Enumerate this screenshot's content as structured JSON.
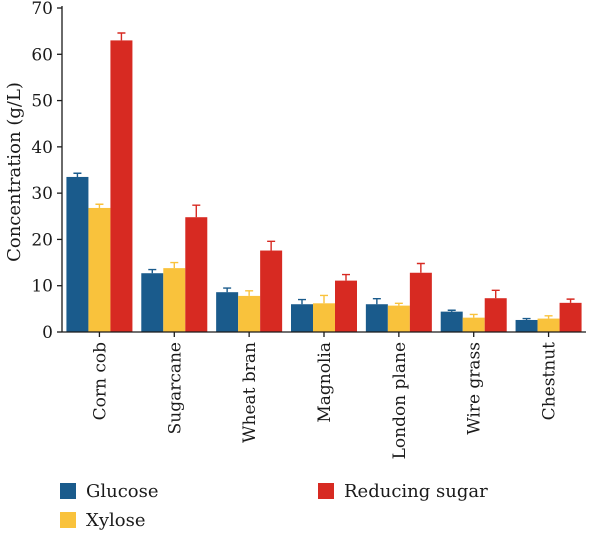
{
  "chart_data": {
    "type": "bar",
    "title": "",
    "xlabel": "",
    "ylabel": "Concentration (g/L)",
    "ylim": [
      0,
      70
    ],
    "yticks": [
      0,
      10,
      20,
      30,
      40,
      50,
      60,
      70
    ],
    "grid": false,
    "legend_position": "bottom",
    "categories": [
      "Corn cob",
      "Sugarcane",
      "Wheat bran",
      "Magnolia",
      "London plane",
      "Wire grass",
      "Chestnut"
    ],
    "series": [
      {
        "name": "Glucose",
        "color": "#1a5b8c",
        "values": [
          33.5,
          12.7,
          8.6,
          6.0,
          6.0,
          4.4,
          2.6
        ],
        "errors": [
          0.8,
          0.8,
          0.9,
          1.0,
          1.2,
          0.3,
          0.3
        ]
      },
      {
        "name": "Xylose",
        "color": "#f9c23c",
        "values": [
          26.8,
          13.8,
          7.8,
          6.2,
          5.7,
          3.1,
          2.9
        ],
        "errors": [
          0.8,
          1.2,
          1.1,
          1.7,
          0.5,
          0.7,
          0.6
        ]
      },
      {
        "name": "Reducing sugar",
        "color": "#d72a22",
        "values": [
          63.0,
          24.8,
          17.6,
          11.1,
          12.8,
          7.3,
          6.3
        ],
        "errors": [
          1.6,
          2.6,
          2.0,
          1.3,
          2.0,
          1.7,
          0.8
        ]
      }
    ]
  }
}
